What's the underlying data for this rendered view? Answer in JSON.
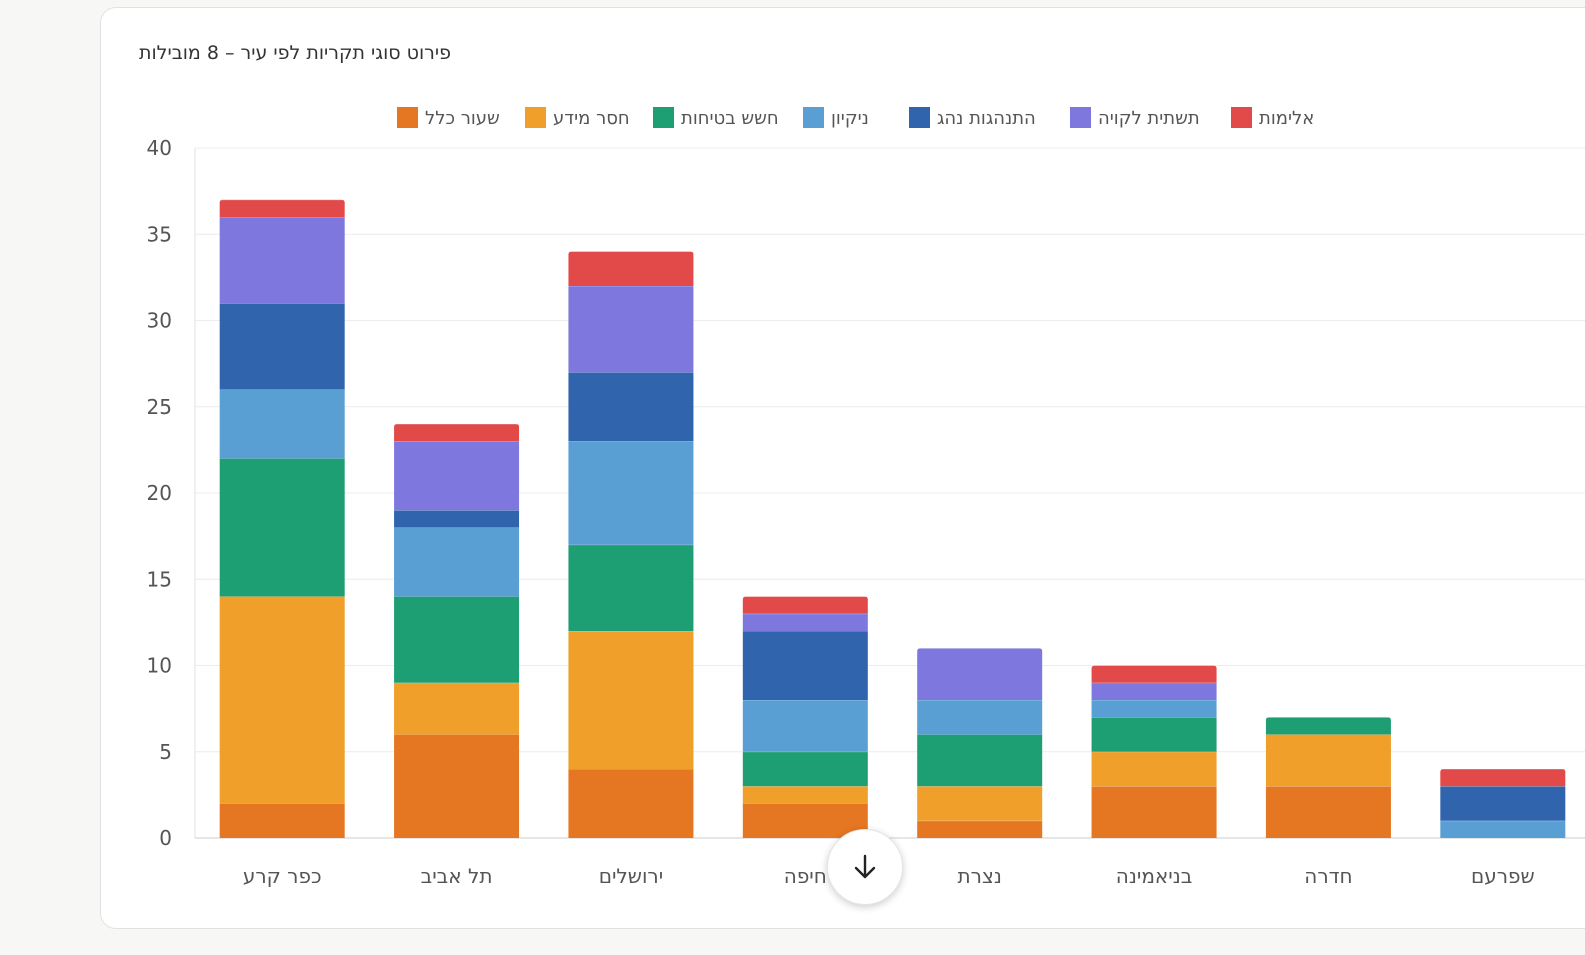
{
  "chart_data": {
    "type": "bar",
    "stacked": true,
    "title": "פירוט סוגי תקריות לפי עיר – 8 מובילות",
    "categories": [
      "כפר קרע",
      "תל אביב",
      "ירושלים",
      "חיפה",
      "נצרת",
      "בניאמינה",
      "חדרה",
      "שפרעם"
    ],
    "series": [
      {
        "name": "שעור כלל",
        "color": "#e67722",
        "values": [
          2,
          6,
          4,
          2,
          1,
          3,
          3,
          0
        ]
      },
      {
        "name": "חסר מידע",
        "color": "#ef9f2a",
        "values": [
          12,
          3,
          8,
          1,
          2,
          2,
          3,
          0
        ]
      },
      {
        "name": "חשש בטיחות",
        "color": "#1e9e73",
        "values": [
          8,
          5,
          5,
          2,
          3,
          2,
          1,
          0
        ]
      },
      {
        "name": "ניקיון",
        "color": "#5a9fd4",
        "values": [
          4,
          4,
          6,
          3,
          2,
          1,
          0,
          1
        ]
      },
      {
        "name": "התנהגות נהג",
        "color": "#3065ad",
        "values": [
          5,
          1,
          4,
          4,
          0,
          0,
          0,
          2
        ]
      },
      {
        "name": "תשתית לקויה",
        "color": "#7e78de",
        "values": [
          5,
          4,
          5,
          1,
          3,
          1,
          0,
          0
        ]
      },
      {
        "name": "אלימות",
        "color": "#e24a4a",
        "values": [
          1,
          1,
          2,
          1,
          0,
          1,
          0,
          1
        ]
      }
    ],
    "ylim": [
      0,
      40
    ],
    "yticks": [
      0,
      5,
      10,
      15,
      20,
      25,
      30,
      35,
      40
    ],
    "grid": true,
    "legend_position": "top"
  },
  "scroll_button": {
    "icon": "arrow-down-icon"
  }
}
